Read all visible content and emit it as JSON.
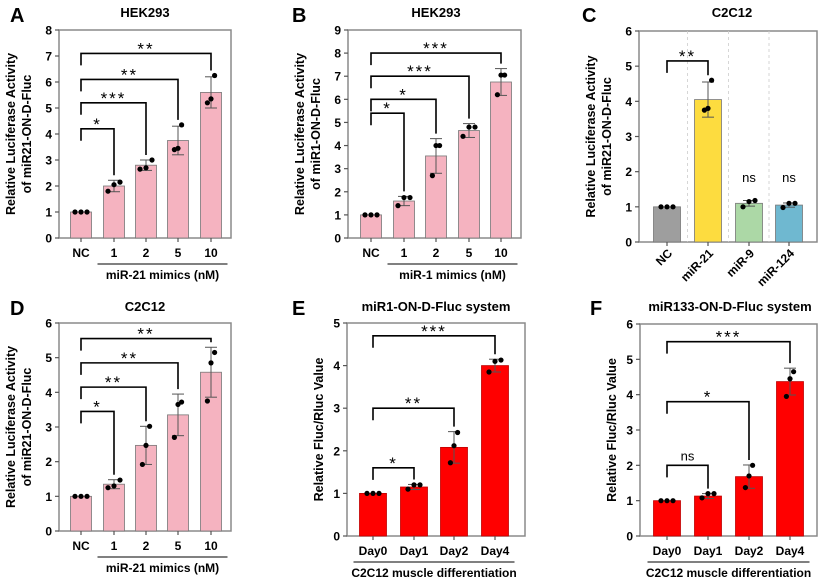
{
  "chart_data": [
    {
      "panel": "A",
      "type": "bar",
      "title": "HEK293",
      "ylabel": [
        "Relative Luciferase Activity",
        "of miR21-ON-D-Fluc"
      ],
      "xlabel": "miR-21 mimics (nM)",
      "group_underline": true,
      "ylim": [
        0,
        8
      ],
      "yticks": [
        0,
        1,
        2,
        3,
        4,
        5,
        6,
        7,
        8
      ],
      "categories": [
        "NC",
        "1",
        "2",
        "5",
        "10"
      ],
      "values": [
        1.0,
        2.0,
        2.8,
        3.75,
        5.6
      ],
      "errors": [
        0.0,
        0.22,
        0.2,
        0.55,
        0.6
      ],
      "points": [
        [
          1,
          1,
          1
        ],
        [
          1.8,
          2.05,
          2.15
        ],
        [
          2.65,
          2.7,
          3.0
        ],
        [
          3.4,
          3.45,
          4.35
        ],
        [
          5.2,
          5.35,
          6.25
        ]
      ],
      "colors": [
        "#f5b3c0"
      ],
      "significance": [
        {
          "from": 0,
          "to": 1,
          "level": 4.2,
          "label": "*"
        },
        {
          "from": 0,
          "to": 2,
          "level": 5.2,
          "label": "***"
        },
        {
          "from": 0,
          "to": 3,
          "level": 6.1,
          "label": "**"
        },
        {
          "from": 0,
          "to": 4,
          "level": 7.1,
          "label": "**"
        }
      ]
    },
    {
      "panel": "B",
      "type": "bar",
      "title": "HEK293",
      "ylabel": [
        "Relative Luciferase Activity",
        "of miR1-ON-D-Fluc"
      ],
      "xlabel": "miR-1 mimics (nM)",
      "group_underline": true,
      "ylim": [
        0,
        9
      ],
      "yticks": [
        0,
        1,
        2,
        3,
        4,
        5,
        6,
        7,
        8,
        9
      ],
      "categories": [
        "NC",
        "1",
        "2",
        "5",
        "10"
      ],
      "values": [
        1.0,
        1.6,
        3.55,
        4.65,
        6.75
      ],
      "errors": [
        0.0,
        0.2,
        0.75,
        0.3,
        0.58
      ],
      "points": [
        [
          1,
          1,
          1
        ],
        [
          1.4,
          1.75,
          1.75
        ],
        [
          2.7,
          4.0,
          4.0
        ],
        [
          4.4,
          4.8,
          4.8
        ],
        [
          6.2,
          7.05,
          7.05
        ]
      ],
      "colors": [
        "#f5b3c0"
      ],
      "significance": [
        {
          "from": 0,
          "to": 1,
          "level": 5.4,
          "label": "*"
        },
        {
          "from": 0,
          "to": 2,
          "level": 6.0,
          "label": "*"
        },
        {
          "from": 0,
          "to": 3,
          "level": 7.0,
          "label": "***"
        },
        {
          "from": 0,
          "to": 4,
          "level": 8.0,
          "label": "***"
        }
      ]
    },
    {
      "panel": "C",
      "type": "bar",
      "title": "C2C12",
      "ylabel": [
        "Relative Luciferase Activity",
        "of miR21-ON-D-Fluc"
      ],
      "xlabel": "",
      "group_underline": false,
      "rotate_ticks": true,
      "dashed_separators": true,
      "ylim": [
        0,
        6
      ],
      "yticks": [
        0,
        1,
        2,
        3,
        4,
        5,
        6
      ],
      "categories": [
        "NC",
        "miR-21",
        "miR-9",
        "miR-124"
      ],
      "values": [
        1.0,
        4.05,
        1.1,
        1.05
      ],
      "errors": [
        0.0,
        0.5,
        0.08,
        0.06
      ],
      "points": [
        [
          1,
          1,
          1
        ],
        [
          3.75,
          3.8,
          4.6
        ],
        [
          1.0,
          1.15,
          1.18
        ],
        [
          0.98,
          1.1,
          1.1
        ]
      ],
      "colors": [
        "#9e9e9e",
        "#fddc3f",
        "#acd8a6",
        "#6fb8d0"
      ],
      "significance": [
        {
          "from": 0,
          "to": 1,
          "level": 5.15,
          "label": "**"
        },
        {
          "at": 2,
          "level": 1.7,
          "label": "ns"
        },
        {
          "at": 3,
          "level": 1.7,
          "label": "ns"
        }
      ]
    },
    {
      "panel": "D",
      "type": "bar",
      "title": "C2C12",
      "ylabel": [
        "Relative Luciferase Activity",
        "of miR21-ON-D-Fluc"
      ],
      "xlabel": "miR-21 mimics (nM)",
      "group_underline": true,
      "ylim": [
        0,
        6
      ],
      "yticks": [
        0,
        1,
        2,
        3,
        4,
        5,
        6
      ],
      "categories": [
        "NC",
        "1",
        "2",
        "5",
        "10"
      ],
      "values": [
        1.0,
        1.35,
        2.47,
        3.35,
        4.58
      ],
      "errors": [
        0.0,
        0.13,
        0.55,
        0.6,
        0.72
      ],
      "points": [
        [
          1,
          1,
          1
        ],
        [
          1.25,
          1.3,
          1.47
        ],
        [
          1.92,
          2.47,
          3.02
        ],
        [
          2.7,
          3.65,
          3.72
        ],
        [
          3.75,
          4.85,
          5.15
        ]
      ],
      "colors": [
        "#f5b3c0"
      ],
      "significance": [
        {
          "from": 0,
          "to": 1,
          "level": 3.45,
          "label": "*"
        },
        {
          "from": 0,
          "to": 2,
          "level": 4.15,
          "label": "**"
        },
        {
          "from": 0,
          "to": 3,
          "level": 4.85,
          "label": "**"
        },
        {
          "from": 0,
          "to": 4,
          "level": 5.55,
          "label": "**"
        }
      ]
    },
    {
      "panel": "E",
      "type": "bar",
      "title": "miR1-ON-D-Fluc system",
      "ylabel": [
        "Relative Fluc/Rluc Value"
      ],
      "xlabel": "C2C12 muscle differentiation",
      "group_underline": true,
      "ylim": [
        0,
        5
      ],
      "yticks": [
        0,
        1,
        2,
        3,
        4,
        5
      ],
      "categories": [
        "Day0",
        "Day1",
        "Day2",
        "Day4"
      ],
      "values": [
        1.0,
        1.15,
        2.08,
        4.0
      ],
      "errors": [
        0.0,
        0.06,
        0.37,
        0.15
      ],
      "points": [
        [
          1,
          1,
          1
        ],
        [
          1.1,
          1.2,
          1.2
        ],
        [
          1.72,
          2.12,
          2.43
        ],
        [
          3.85,
          4.1,
          4.13
        ]
      ],
      "colors": [
        "#ff0000"
      ],
      "significance": [
        {
          "from": 0,
          "to": 1,
          "level": 1.6,
          "label": "*"
        },
        {
          "from": 0,
          "to": 2,
          "level": 3.0,
          "label": "**"
        },
        {
          "from": 0,
          "to": 3,
          "level": 4.7,
          "label": "***"
        }
      ]
    },
    {
      "panel": "F",
      "type": "bar",
      "title": "miR133-ON-D-Fluc system",
      "ylabel": [
        "Relative Fluc/Rluc Value"
      ],
      "xlabel": "C2C12 muscle differentiation",
      "group_underline": true,
      "ylim": [
        0,
        6
      ],
      "yticks": [
        0,
        1,
        2,
        3,
        4,
        5,
        6
      ],
      "categories": [
        "Day0",
        "Day1",
        "Day2",
        "Day4"
      ],
      "values": [
        1.0,
        1.13,
        1.68,
        4.37
      ],
      "errors": [
        0.0,
        0.07,
        0.33,
        0.38
      ],
      "points": [
        [
          1,
          1,
          1
        ],
        [
          1.08,
          1.2,
          1.2
        ],
        [
          1.37,
          1.7,
          2.0
        ],
        [
          3.95,
          4.45,
          4.65
        ]
      ],
      "colors": [
        "#ff0000"
      ],
      "significance": [
        {
          "from": 0,
          "to": 1,
          "level": 2.0,
          "label": "ns"
        },
        {
          "from": 0,
          "to": 2,
          "level": 3.8,
          "label": "*"
        },
        {
          "from": 0,
          "to": 3,
          "level": 5.5,
          "label": "***"
        }
      ]
    }
  ]
}
